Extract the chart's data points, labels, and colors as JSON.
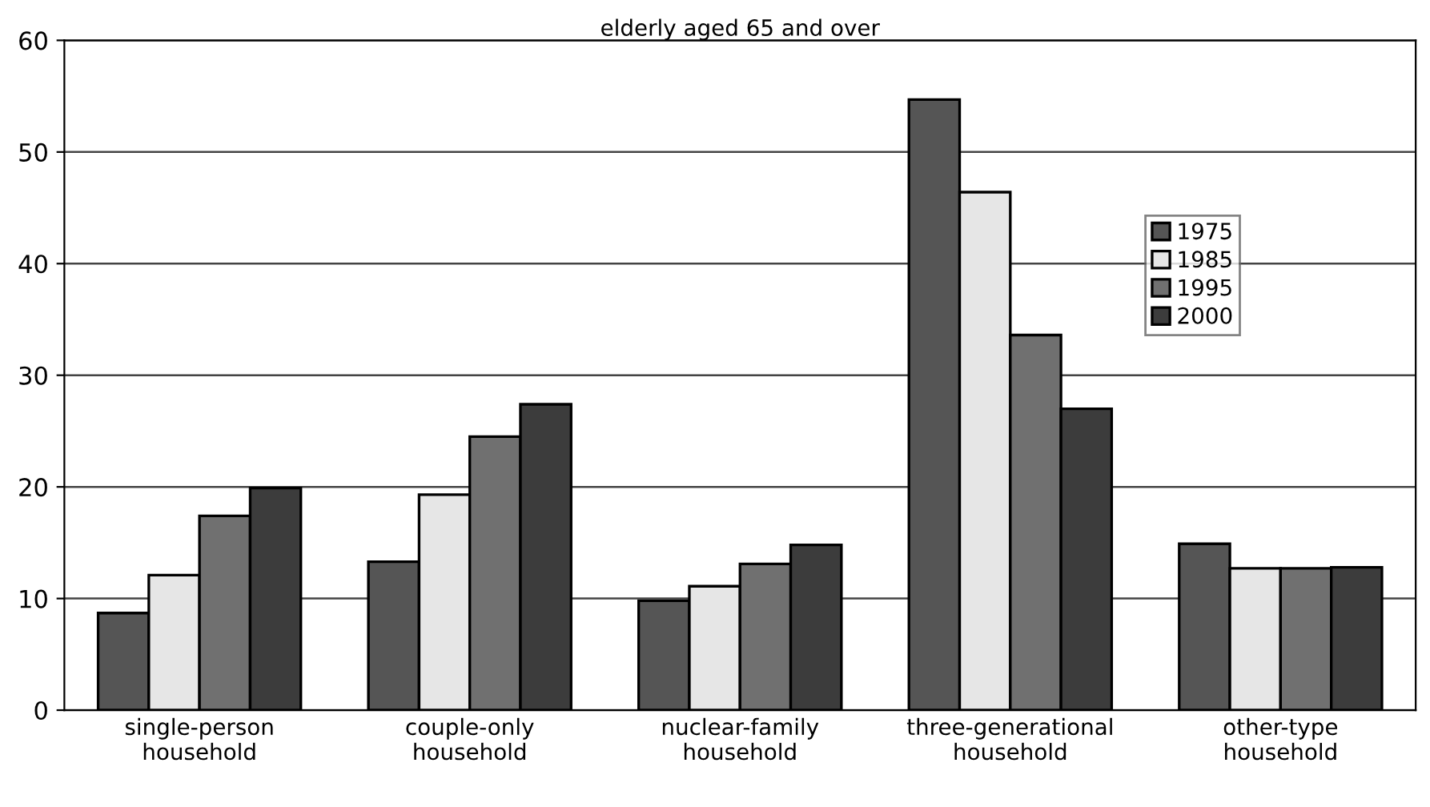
{
  "chart_data": {
    "type": "bar",
    "title": "elderly aged 65 and over",
    "categories": [
      "single-person\nhousehold",
      "couple-only\nhousehold",
      "nuclear-family\nhousehold",
      "three-generational\nhousehold",
      "other-type\nhousehold"
    ],
    "series": [
      {
        "name": "1975",
        "color": "#555555",
        "values": [
          8.7,
          13.3,
          9.8,
          54.7,
          14.9
        ]
      },
      {
        "name": "1985",
        "color": "#e6e6e6",
        "values": [
          12.1,
          19.3,
          11.1,
          46.4,
          12.7
        ]
      },
      {
        "name": "1995",
        "color": "#707070",
        "values": [
          17.4,
          24.5,
          13.1,
          33.6,
          12.7
        ]
      },
      {
        "name": "2000",
        "color": "#3c3c3c",
        "values": [
          19.9,
          27.4,
          14.8,
          27.0,
          12.8
        ]
      }
    ],
    "ylim": [
      0,
      60
    ],
    "yticks": [
      0,
      10,
      20,
      30,
      40,
      50,
      60
    ],
    "grid": "y",
    "legend": "top right"
  }
}
